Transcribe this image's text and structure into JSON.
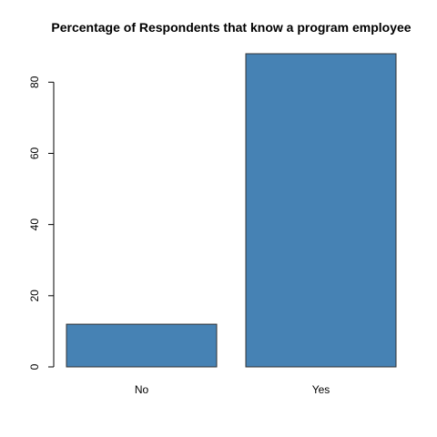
{
  "chart_data": {
    "type": "bar",
    "title": "Percentage of Respondents that know a program employee",
    "xlabel": "",
    "ylabel": "",
    "categories": [
      "No",
      "Yes"
    ],
    "values": [
      12,
      88
    ],
    "ylim": [
      0,
      88
    ],
    "yticks": [
      0,
      20,
      40,
      60,
      80
    ],
    "ytick_labels": [
      "0",
      "20",
      "40",
      "60",
      "80"
    ],
    "bar_color": "#4682B4",
    "bar_border_color": "#333333",
    "grid": false,
    "legend": "none"
  }
}
